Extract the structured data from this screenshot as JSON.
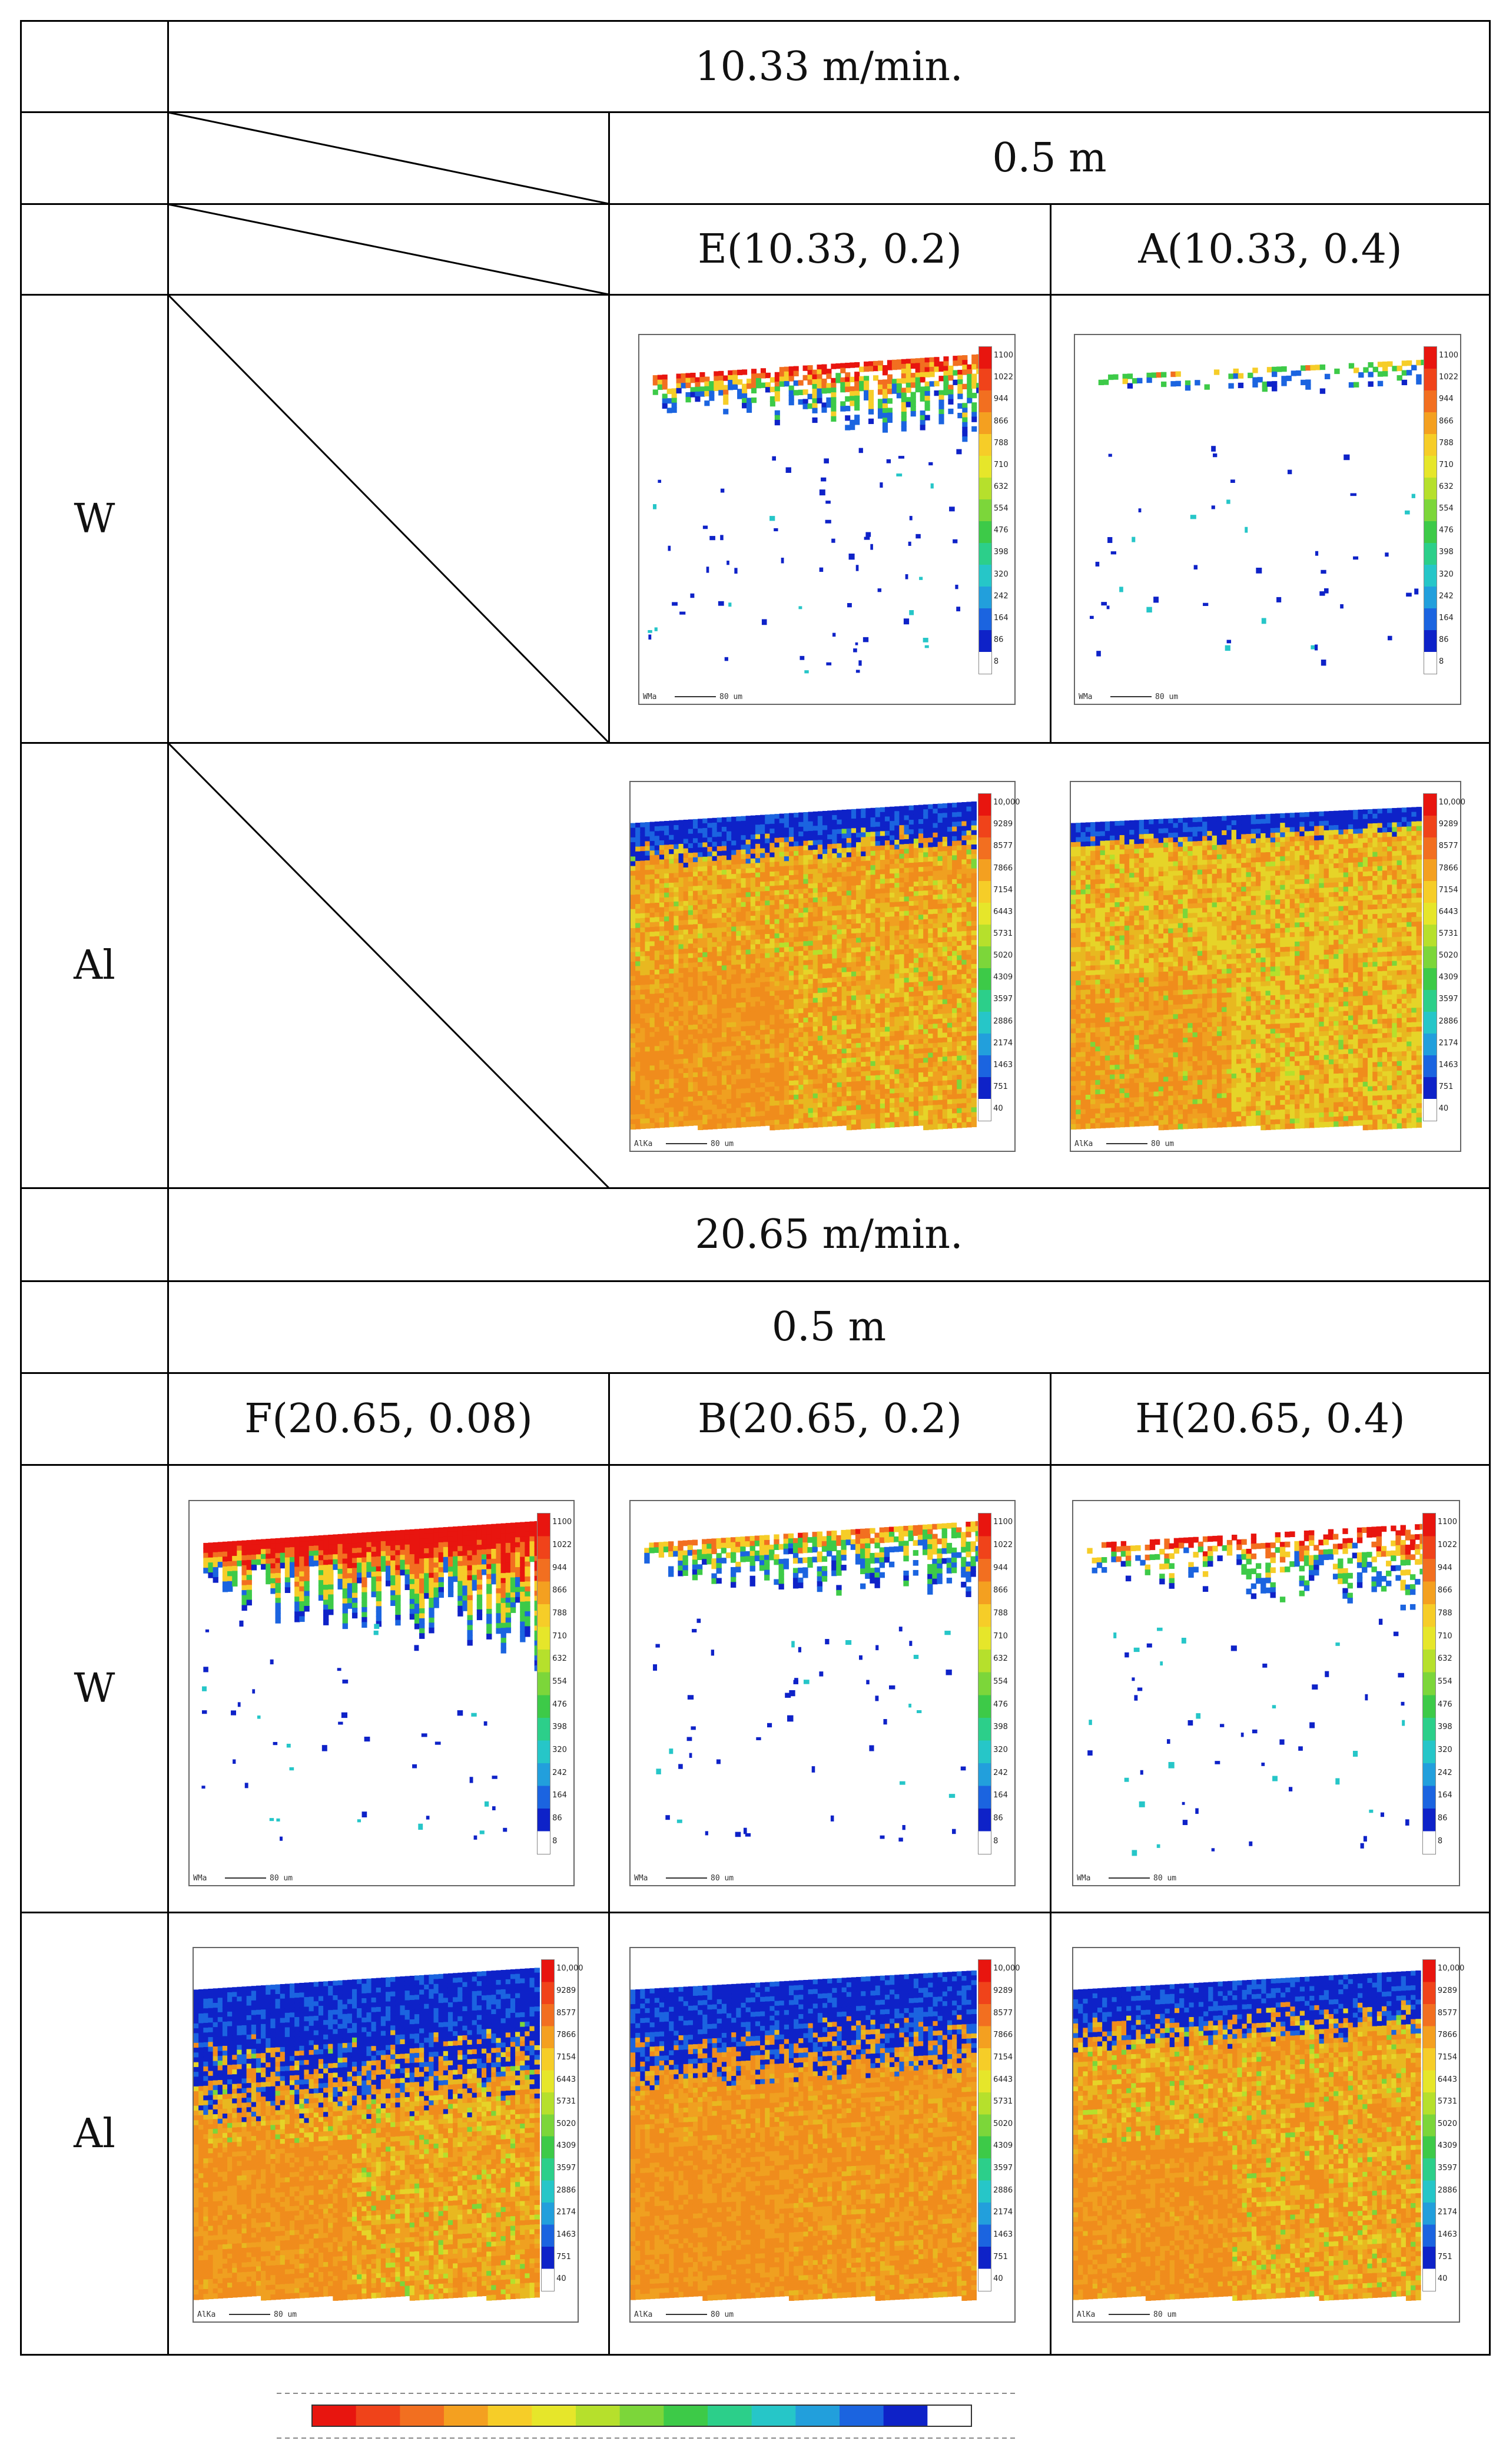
{
  "headers": {
    "speed_1": "10.33 m/min.",
    "dist_1": "0.5 m",
    "speed_2": "20.65 m/min.",
    "dist_2": "0.5 m"
  },
  "columns": {
    "E": "E(10.33, 0.2)",
    "A": "A(10.33, 0.4)",
    "F": "F(20.65, 0.08)",
    "B": "B(20.65, 0.2)",
    "H": "H(20.65, 0.4)"
  },
  "rows": {
    "w1": "W",
    "al1": "Al",
    "w2": "W",
    "al2": "Al"
  },
  "scales": {
    "W": [
      "1100",
      "1022",
      "944",
      "866",
      "788",
      "710",
      "632",
      "554",
      "476",
      "398",
      "320",
      "242",
      "164",
      "86",
      "8"
    ],
    "Al": [
      "10,000",
      "9289",
      "8577",
      "7866",
      "7154",
      "6443",
      "5731",
      "5020",
      "4309",
      "3597",
      "2886",
      "2174",
      "1463",
      "751",
      "40"
    ]
  },
  "map_captions": {
    "W": "WMa",
    "Al": "AlKa",
    "scale_bar": "80 um"
  },
  "colors": {
    "scale": [
      "#e8150f",
      "#f0431a",
      "#f26f20",
      "#f4a020",
      "#f6cd28",
      "#e6e62a",
      "#b6e02c",
      "#7cd63a",
      "#3dca48",
      "#2ccf8a",
      "#26c6c8",
      "#229fdc",
      "#1b64e0",
      "#0e22c8",
      "#ffffff"
    ],
    "w_gradient": [
      "#0e22c8",
      "#1b64e0",
      "#3dca48",
      "#f6cd28",
      "#f26f20",
      "#e8150f"
    ],
    "al_base": [
      "#f0a020",
      "#f08c1c",
      "#e8b820",
      "#e6d428",
      "#b6e02c",
      "#7cd63a",
      "#0e22c8",
      "#1b64e0"
    ]
  },
  "maps": [
    {
      "id": "E_W",
      "kind": "W",
      "topDepth": 0.26,
      "edgeRise": 0.4,
      "density": 0.55,
      "heat": 0.7,
      "speckles": 70,
      "seed": 11
    },
    {
      "id": "A_W",
      "kind": "W",
      "topDepth": 0.1,
      "edgeRise": 0.3,
      "density": 0.2,
      "heat": 0.35,
      "speckles": 45,
      "seed": 23
    },
    {
      "id": "E_AL",
      "kind": "Al",
      "topDepth": 0.28,
      "edgeRise": 0.4,
      "blue": 0.18,
      "warm": 0.55,
      "seed": 31
    },
    {
      "id": "A_AL",
      "kind": "Al",
      "topDepth": 0.22,
      "edgeRise": 0.3,
      "blue": 0.1,
      "warm": 0.35,
      "seed": 47
    },
    {
      "id": "F_W",
      "kind": "W",
      "topDepth": 0.42,
      "edgeRise": 0.4,
      "density": 0.85,
      "heat": 0.95,
      "speckles": 45,
      "seed": 53
    },
    {
      "id": "B_W",
      "kind": "W",
      "topDepth": 0.23,
      "edgeRise": 0.4,
      "density": 0.6,
      "heat": 0.5,
      "speckles": 55,
      "seed": 61
    },
    {
      "id": "H_W",
      "kind": "W",
      "topDepth": 0.25,
      "edgeRise": 0.35,
      "density": 0.4,
      "heat": 0.75,
      "speckles": 55,
      "seed": 71
    },
    {
      "id": "F_AL",
      "kind": "Al",
      "topDepth": 0.45,
      "edgeRise": 0.4,
      "blue": 0.55,
      "warm": 0.6,
      "seed": 83
    },
    {
      "id": "B_AL",
      "kind": "Al",
      "topDepth": 0.3,
      "edgeRise": 0.35,
      "blue": 0.4,
      "warm": 0.85,
      "seed": 97
    },
    {
      "id": "H_AL",
      "kind": "Al",
      "topDepth": 0.3,
      "edgeRise": 0.35,
      "blue": 0.25,
      "warm": 0.6,
      "seed": 101
    }
  ]
}
